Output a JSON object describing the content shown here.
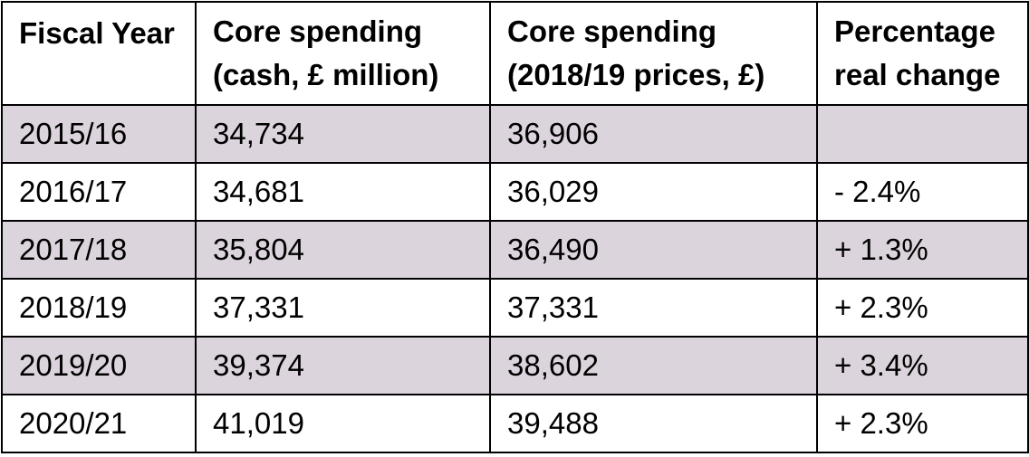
{
  "chart_data": {
    "type": "table",
    "columns": [
      [
        "Fiscal Year"
      ],
      [
        "Core spending",
        "(cash, £ million)"
      ],
      [
        "Core spending",
        "(2018/19 prices, £)"
      ],
      [
        "Percentage",
        "real change"
      ]
    ],
    "rows": [
      [
        "2015/16",
        "34,734",
        "36,906",
        ""
      ],
      [
        "2016/17",
        "34,681",
        "36,029",
        "- 2.4%"
      ],
      [
        "2017/18",
        "35,804",
        "36,490",
        "+ 1.3%"
      ],
      [
        "2018/19",
        "37,331",
        "37,331",
        "+ 2.3%"
      ],
      [
        "2019/20",
        "39,374",
        "38,602",
        "+ 3.4%"
      ],
      [
        "2020/21",
        "41,019",
        "39,488",
        "+ 2.3%"
      ]
    ],
    "row_shading": [
      "#dcd4dc",
      "#ffffff"
    ]
  }
}
